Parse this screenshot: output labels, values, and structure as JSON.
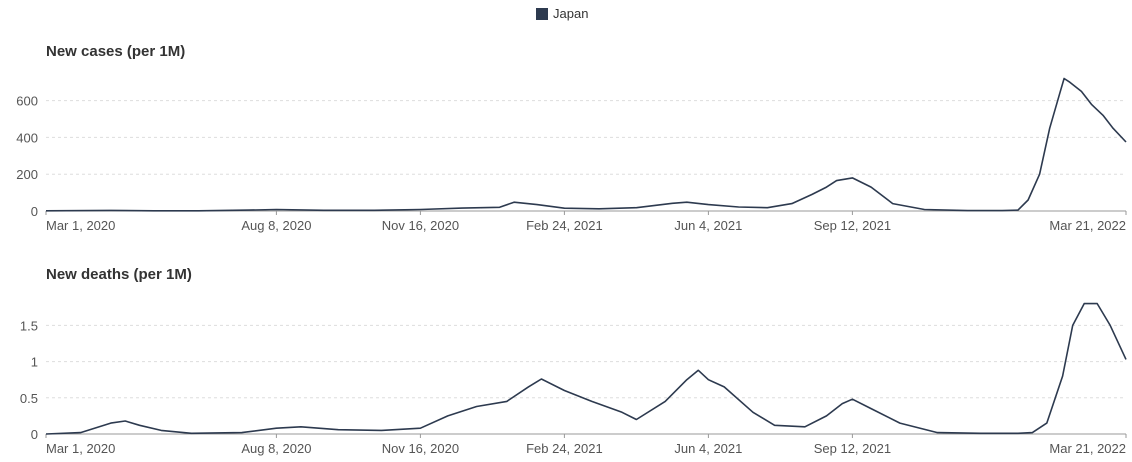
{
  "legend": {
    "label": "Japan",
    "color": "#2d3a4f"
  },
  "chart_data": [
    {
      "type": "line",
      "title": "New cases (per 1M)",
      "xlabel": "",
      "ylabel": "",
      "x_ticks": [
        "Mar 1, 2020",
        "Aug 8, 2020",
        "Nov 16, 2020",
        "Feb 24, 2021",
        "Jun 4, 2021",
        "Sep 12, 2021",
        "Mar 21, 2022"
      ],
      "y_ticks": [
        0,
        200,
        400,
        600
      ],
      "ylim": [
        0,
        750
      ],
      "xlim": [
        "2020-03-01",
        "2022-03-21"
      ],
      "grid": true,
      "series": [
        {
          "name": "Japan",
          "color": "#2d3a4f",
          "x": [
            "2020-03-01",
            "2020-04-15",
            "2020-05-15",
            "2020-06-15",
            "2020-07-20",
            "2020-08-08",
            "2020-09-10",
            "2020-10-15",
            "2020-11-16",
            "2020-12-15",
            "2021-01-10",
            "2021-01-20",
            "2021-02-05",
            "2021-02-24",
            "2021-03-20",
            "2021-04-15",
            "2021-05-10",
            "2021-05-20",
            "2021-06-04",
            "2021-06-25",
            "2021-07-15",
            "2021-08-01",
            "2021-08-15",
            "2021-08-25",
            "2021-09-01",
            "2021-09-12",
            "2021-09-25",
            "2021-10-10",
            "2021-11-01",
            "2021-12-01",
            "2021-12-25",
            "2022-01-05",
            "2022-01-12",
            "2022-01-20",
            "2022-01-27",
            "2022-02-03",
            "2022-02-06",
            "2022-02-10",
            "2022-02-18",
            "2022-02-25",
            "2022-03-05",
            "2022-03-12",
            "2022-03-21"
          ],
          "values": [
            1,
            3,
            1,
            1,
            5,
            8,
            4,
            4,
            8,
            16,
            20,
            48,
            35,
            15,
            12,
            18,
            42,
            48,
            35,
            22,
            18,
            40,
            90,
            130,
            165,
            180,
            130,
            40,
            8,
            2,
            2,
            5,
            60,
            200,
            450,
            640,
            720,
            700,
            650,
            580,
            520,
            450,
            375
          ]
        }
      ]
    },
    {
      "type": "line",
      "title": "New deaths (per 1M)",
      "xlabel": "",
      "ylabel": "",
      "x_ticks": [
        "Mar 1, 2020",
        "Aug 8, 2020",
        "Nov 16, 2020",
        "Feb 24, 2021",
        "Jun 4, 2021",
        "Sep 12, 2021",
        "Mar 21, 2022"
      ],
      "y_ticks": [
        0,
        0.5,
        1,
        1.5
      ],
      "ylim": [
        0,
        1.85
      ],
      "xlim": [
        "2020-03-01",
        "2022-03-21"
      ],
      "grid": true,
      "series": [
        {
          "name": "Japan",
          "color": "#2d3a4f",
          "x": [
            "2020-03-01",
            "2020-03-25",
            "2020-04-15",
            "2020-04-25",
            "2020-05-05",
            "2020-05-20",
            "2020-06-10",
            "2020-07-15",
            "2020-08-08",
            "2020-08-25",
            "2020-09-20",
            "2020-10-20",
            "2020-11-16",
            "2020-12-05",
            "2020-12-25",
            "2021-01-15",
            "2021-01-30",
            "2021-02-08",
            "2021-02-24",
            "2021-03-15",
            "2021-04-05",
            "2021-04-15",
            "2021-05-05",
            "2021-05-20",
            "2021-05-28",
            "2021-06-04",
            "2021-06-15",
            "2021-07-05",
            "2021-07-20",
            "2021-08-10",
            "2021-08-25",
            "2021-09-05",
            "2021-09-12",
            "2021-09-25",
            "2021-10-15",
            "2021-11-10",
            "2021-12-10",
            "2022-01-05",
            "2022-01-15",
            "2022-01-25",
            "2022-02-05",
            "2022-02-12",
            "2022-02-20",
            "2022-03-01",
            "2022-03-10",
            "2022-03-21"
          ],
          "values": [
            0,
            0.02,
            0.15,
            0.18,
            0.12,
            0.05,
            0.01,
            0.02,
            0.08,
            0.1,
            0.06,
            0.05,
            0.08,
            0.25,
            0.38,
            0.45,
            0.65,
            0.76,
            0.6,
            0.45,
            0.3,
            0.2,
            0.45,
            0.75,
            0.88,
            0.75,
            0.65,
            0.3,
            0.12,
            0.1,
            0.25,
            0.42,
            0.48,
            0.35,
            0.15,
            0.02,
            0.01,
            0.01,
            0.02,
            0.15,
            0.8,
            1.5,
            1.8,
            1.8,
            1.5,
            1.03
          ]
        }
      ]
    }
  ]
}
